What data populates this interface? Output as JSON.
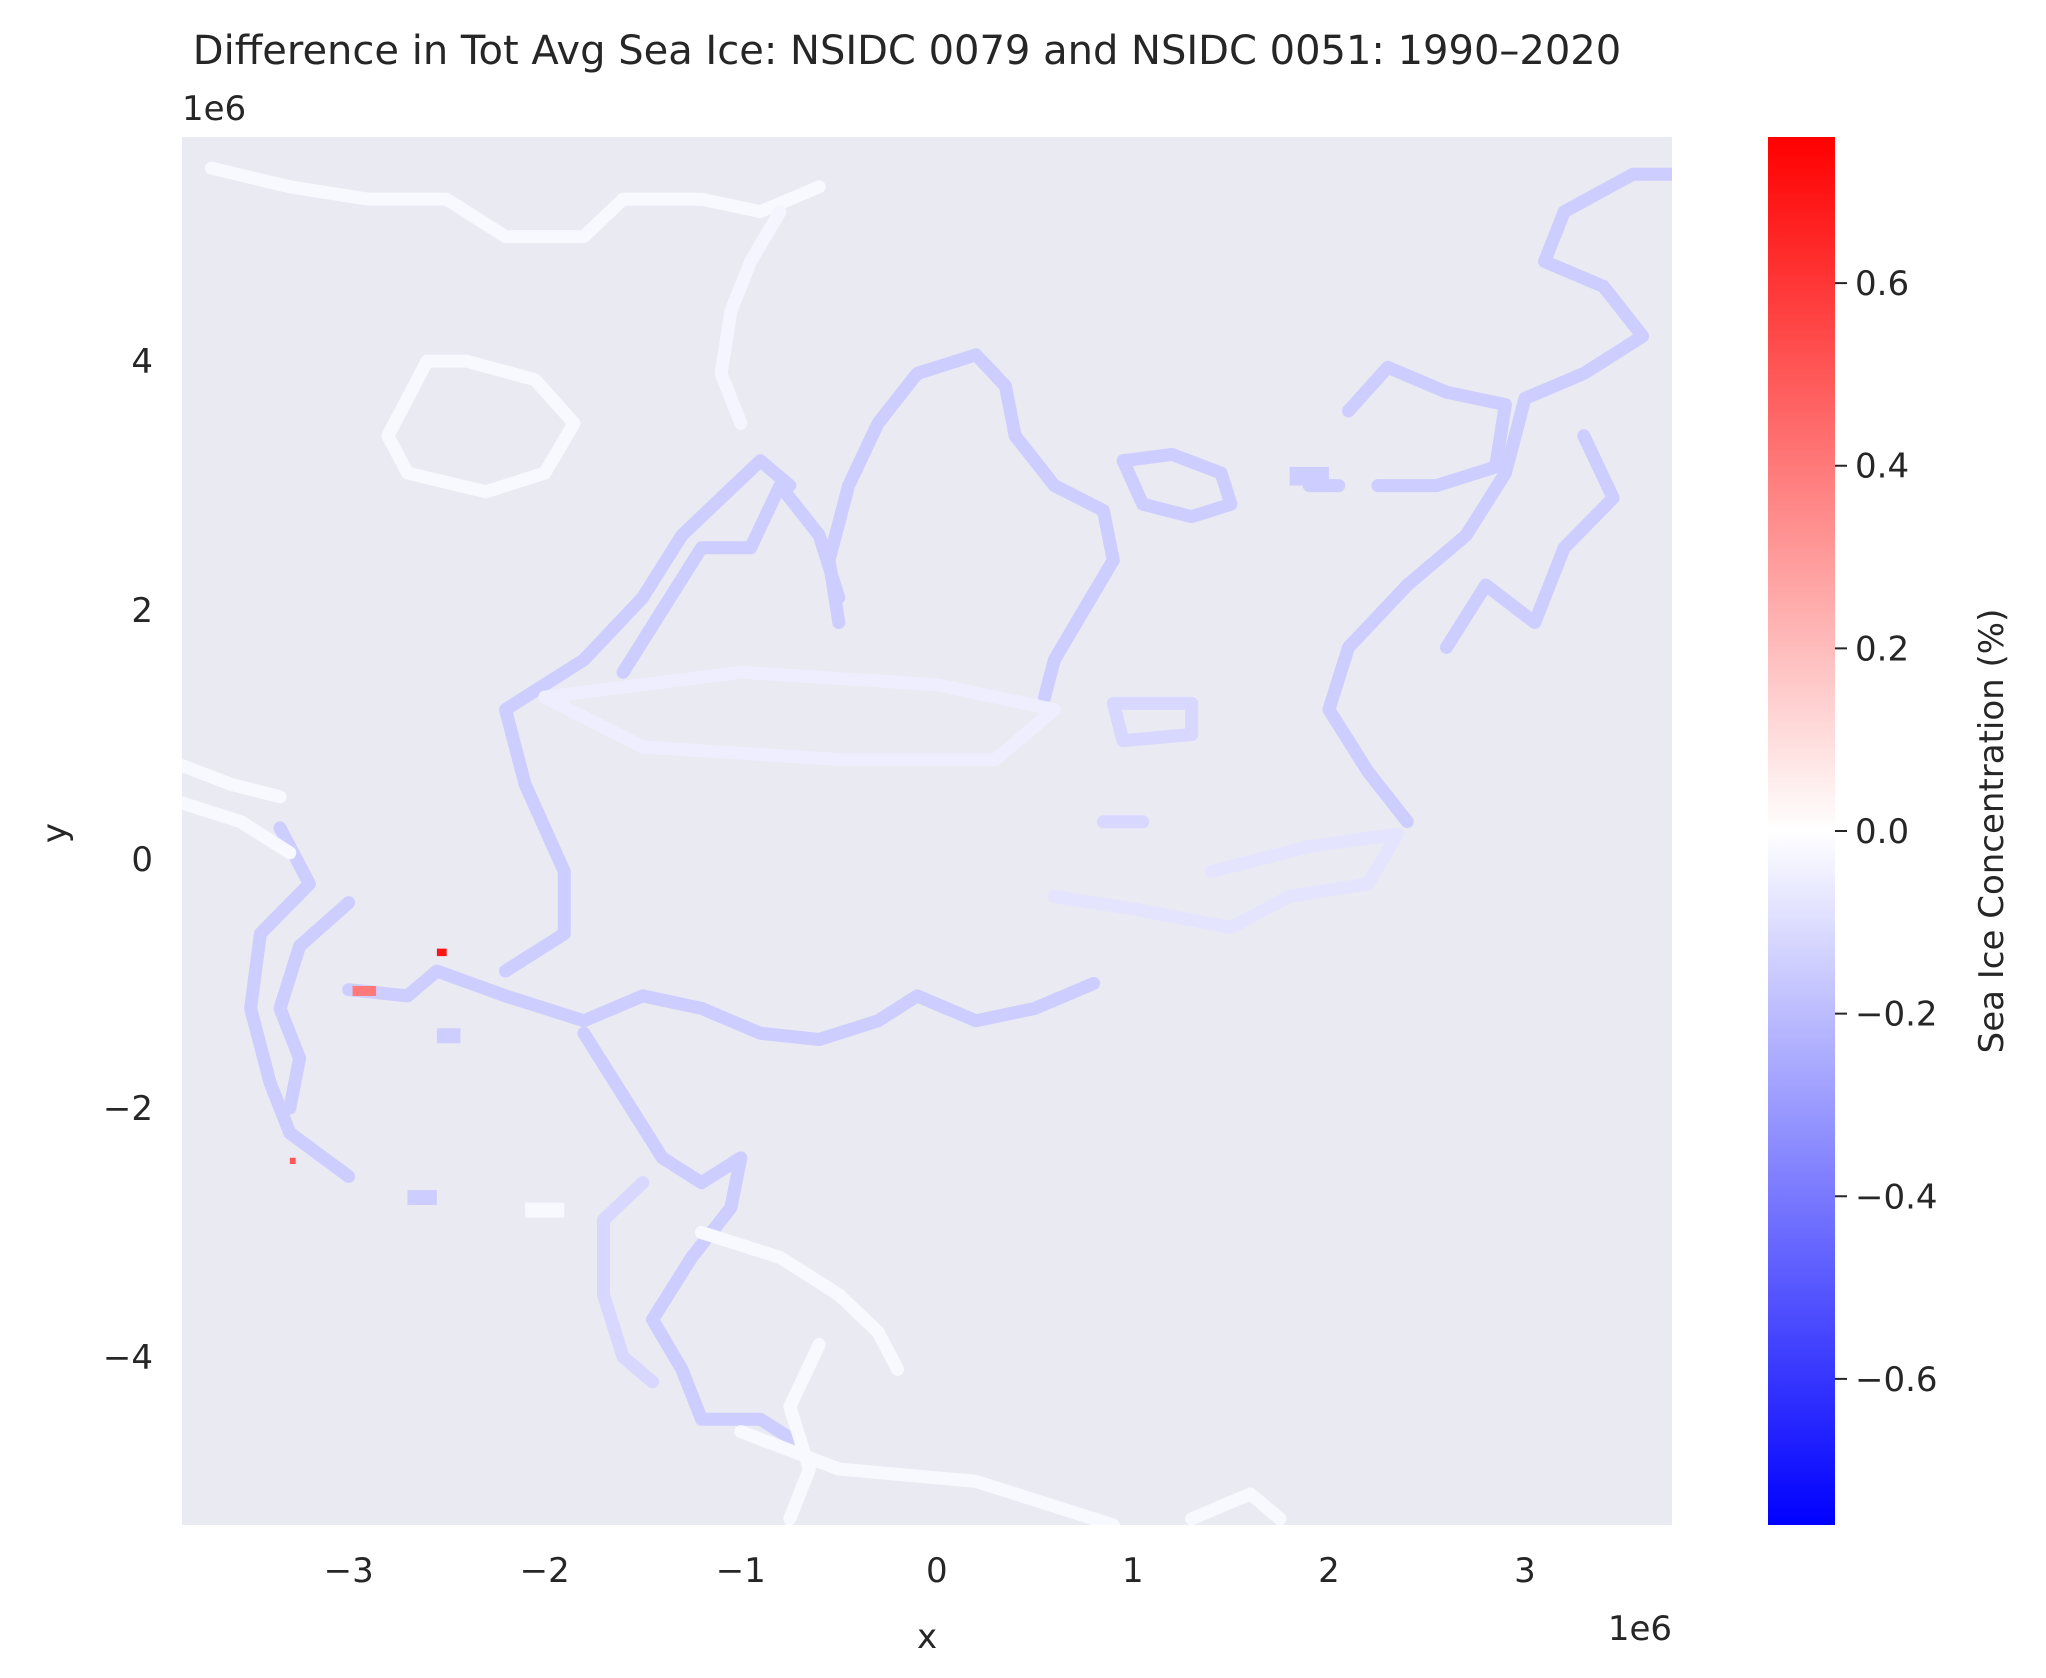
{
  "chart_data": {
    "type": "heatmap",
    "title": "Difference in Tot Avg Sea Ice: NSIDC 0079 and NSIDC 0051: 1990–2020",
    "xlabel": "x",
    "ylabel": "y",
    "x_offset_label": "1e6",
    "y_offset_label": "1e6",
    "xlim": [
      -3.85,
      3.75
    ],
    "ylim": [
      -5.35,
      5.8
    ],
    "x_ticks": [
      -3,
      -2,
      -1,
      0,
      1,
      2,
      3
    ],
    "x_tick_labels": [
      "−3",
      "−2",
      "−1",
      "0",
      "1",
      "2",
      "3"
    ],
    "y_ticks": [
      -4,
      -2,
      0,
      2,
      4
    ],
    "y_tick_labels": [
      "−4",
      "−2",
      "0",
      "2",
      "4"
    ],
    "grid": false,
    "background_color": "#eaeaf2",
    "colorbar": {
      "label": "Sea Ice Concentration (%)",
      "range": [
        -0.76,
        0.76
      ],
      "ticks": [
        0.6,
        0.4,
        0.2,
        0.0,
        -0.2,
        -0.4,
        -0.6
      ],
      "tick_labels": [
        "0.6",
        "0.4",
        "0.2",
        "0.0",
        "−0.2",
        "−0.4",
        "−0.6"
      ],
      "colormap": "bwr",
      "color_low": "#0000ff",
      "color_mid": "#ffffff",
      "color_high": "#ff0000"
    },
    "features": [
      {
        "name": "greenland-coast",
        "value": -0.15,
        "points": [
          [
            -0.5,
            1.9
          ],
          [
            -0.55,
            2.4
          ],
          [
            -0.45,
            3.0
          ],
          [
            -0.3,
            3.5
          ],
          [
            -0.1,
            3.9
          ],
          [
            0.2,
            4.05
          ],
          [
            0.35,
            3.8
          ],
          [
            0.4,
            3.4
          ],
          [
            0.6,
            3.0
          ],
          [
            0.85,
            2.8
          ],
          [
            0.9,
            2.4
          ],
          [
            0.75,
            2.0
          ],
          [
            0.6,
            1.6
          ],
          [
            0.55,
            1.3
          ]
        ]
      },
      {
        "name": "svalbard",
        "value": -0.15,
        "points": [
          [
            0.95,
            3.2
          ],
          [
            1.2,
            3.25
          ],
          [
            1.45,
            3.1
          ],
          [
            1.5,
            2.85
          ],
          [
            1.3,
            2.75
          ],
          [
            1.05,
            2.85
          ],
          [
            0.95,
            3.2
          ]
        ]
      },
      {
        "name": "franz-josef",
        "value": -0.15,
        "points": [
          [
            1.9,
            3.0
          ],
          [
            2.05,
            3.0
          ]
        ]
      },
      {
        "name": "novaya-zemlya",
        "value": -0.15,
        "points": [
          [
            2.1,
            3.6
          ],
          [
            2.3,
            3.95
          ],
          [
            2.6,
            3.75
          ],
          [
            2.9,
            3.65
          ],
          [
            2.85,
            3.15
          ],
          [
            2.55,
            3.0
          ],
          [
            2.25,
            3.0
          ]
        ]
      },
      {
        "name": "siberia-east-coast",
        "value": -0.15,
        "points": [
          [
            3.8,
            5.5
          ],
          [
            3.55,
            5.5
          ],
          [
            3.2,
            5.2
          ],
          [
            3.1,
            4.8
          ],
          [
            3.4,
            4.6
          ],
          [
            3.6,
            4.2
          ],
          [
            3.3,
            3.9
          ],
          [
            3.0,
            3.7
          ],
          [
            2.9,
            3.1
          ],
          [
            2.7,
            2.6
          ],
          [
            2.4,
            2.2
          ],
          [
            2.1,
            1.7
          ],
          [
            2.0,
            1.2
          ],
          [
            2.2,
            0.7
          ],
          [
            2.4,
            0.3
          ]
        ]
      },
      {
        "name": "siberia-inner-coast",
        "value": -0.15,
        "points": [
          [
            3.3,
            3.4
          ],
          [
            3.45,
            2.9
          ],
          [
            3.2,
            2.5
          ],
          [
            3.05,
            1.9
          ],
          [
            2.8,
            2.2
          ],
          [
            2.6,
            1.7
          ]
        ]
      },
      {
        "name": "new-siberian-islands",
        "value": -0.12,
        "points": [
          [
            0.9,
            1.25
          ],
          [
            1.3,
            1.25
          ],
          [
            1.3,
            1.0
          ],
          [
            0.95,
            0.95
          ],
          [
            0.9,
            1.25
          ]
        ]
      },
      {
        "name": "wrangel",
        "value": -0.12,
        "points": [
          [
            0.85,
            0.3
          ],
          [
            1.05,
            0.3
          ]
        ]
      },
      {
        "name": "alaska-coast",
        "value": -0.15,
        "points": [
          [
            -3.35,
            0.25
          ],
          [
            -3.2,
            -0.2
          ],
          [
            -3.45,
            -0.6
          ],
          [
            -3.5,
            -1.2
          ],
          [
            -3.4,
            -1.8
          ],
          [
            -3.3,
            -2.2
          ],
          [
            -3.0,
            -2.55
          ]
        ]
      },
      {
        "name": "bering-coast",
        "value": -0.15,
        "points": [
          [
            -3.0,
            -0.35
          ],
          [
            -3.25,
            -0.7
          ],
          [
            -3.35,
            -1.2
          ],
          [
            -3.25,
            -1.6
          ],
          [
            -3.3,
            -2.0
          ]
        ]
      },
      {
        "name": "canada-arctic-coast",
        "value": -0.15,
        "points": [
          [
            -3.0,
            -1.05
          ],
          [
            -2.7,
            -1.1
          ],
          [
            -2.55,
            -0.9
          ],
          [
            -2.2,
            -1.1
          ],
          [
            -1.8,
            -1.3
          ],
          [
            -1.5,
            -1.1
          ],
          [
            -1.2,
            -1.2
          ],
          [
            -0.9,
            -1.4
          ],
          [
            -0.6,
            -1.45
          ],
          [
            -0.3,
            -1.3
          ],
          [
            -0.1,
            -1.1
          ],
          [
            0.2,
            -1.3
          ],
          [
            0.5,
            -1.2
          ],
          [
            0.8,
            -1.0
          ]
        ]
      },
      {
        "name": "canadian-archipelago",
        "value": -0.15,
        "points": [
          [
            -2.2,
            -0.9
          ],
          [
            -1.9,
            -0.6
          ],
          [
            -1.9,
            -0.1
          ],
          [
            -2.1,
            0.6
          ],
          [
            -2.2,
            1.2
          ],
          [
            -1.8,
            1.6
          ],
          [
            -1.5,
            2.1
          ],
          [
            -1.3,
            2.6
          ],
          [
            -1.1,
            2.9
          ],
          [
            -0.9,
            3.2
          ],
          [
            -0.75,
            3.0
          ]
        ]
      },
      {
        "name": "ellesmere-island",
        "value": -0.15,
        "points": [
          [
            -1.6,
            1.5
          ],
          [
            -1.4,
            2.0
          ],
          [
            -1.2,
            2.5
          ],
          [
            -0.95,
            2.5
          ],
          [
            -0.8,
            3.0
          ],
          [
            -0.6,
            2.6
          ],
          [
            -0.5,
            2.1
          ]
        ]
      },
      {
        "name": "hudson-bay",
        "value": -0.15,
        "points": [
          [
            -1.8,
            -1.4
          ],
          [
            -1.6,
            -1.9
          ],
          [
            -1.4,
            -2.4
          ],
          [
            -1.2,
            -2.6
          ],
          [
            -1.0,
            -2.4
          ],
          [
            -1.05,
            -2.8
          ],
          [
            -1.25,
            -3.2
          ],
          [
            -1.45,
            -3.7
          ],
          [
            -1.3,
            -4.1
          ],
          [
            -1.2,
            -4.5
          ],
          [
            -0.9,
            -4.5
          ],
          [
            -0.7,
            -4.7
          ]
        ]
      },
      {
        "name": "labrador-coast",
        "value": -0.12,
        "points": [
          [
            -1.5,
            -2.6
          ],
          [
            -1.7,
            -2.9
          ],
          [
            -1.7,
            -3.5
          ],
          [
            -1.6,
            -4.0
          ],
          [
            -1.45,
            -4.2
          ]
        ]
      },
      {
        "name": "central-arctic-ocean",
        "value": -0.05,
        "points": [
          [
            -2.0,
            1.3
          ],
          [
            -1.0,
            1.5
          ],
          [
            0.0,
            1.4
          ],
          [
            0.6,
            1.2
          ],
          [
            0.3,
            0.8
          ],
          [
            -0.5,
            0.8
          ],
          [
            -1.5,
            0.9
          ],
          [
            -2.0,
            1.3
          ]
        ]
      },
      {
        "name": "barents-sea-edge",
        "value": -0.08,
        "points": [
          [
            0.6,
            -0.3
          ],
          [
            1.0,
            -0.4
          ],
          [
            1.5,
            -0.55
          ],
          [
            1.8,
            -0.3
          ],
          [
            2.2,
            -0.2
          ],
          [
            2.35,
            0.2
          ],
          [
            1.9,
            0.1
          ],
          [
            1.4,
            -0.1
          ]
        ]
      },
      {
        "name": "north-atlantic-edge-top",
        "value": -0.02,
        "points": [
          [
            -3.7,
            5.55
          ],
          [
            -3.3,
            5.4
          ],
          [
            -2.9,
            5.3
          ],
          [
            -2.5,
            5.3
          ],
          [
            -2.2,
            5.0
          ],
          [
            -1.8,
            5.0
          ],
          [
            -1.6,
            5.3
          ],
          [
            -1.2,
            5.3
          ],
          [
            -0.9,
            5.2
          ],
          [
            -0.6,
            5.4
          ]
        ]
      },
      {
        "name": "east-greenland-current",
        "value": -0.03,
        "points": [
          [
            -0.8,
            5.2
          ],
          [
            -0.95,
            4.8
          ],
          [
            -1.05,
            4.4
          ],
          [
            -1.1,
            3.9
          ],
          [
            -1.0,
            3.5
          ]
        ]
      },
      {
        "name": "iceland-ring",
        "value": -0.02,
        "points": [
          [
            -2.6,
            4.0
          ],
          [
            -2.4,
            4.0
          ],
          [
            -2.05,
            3.85
          ],
          [
            -1.85,
            3.5
          ],
          [
            -2.0,
            3.1
          ],
          [
            -2.3,
            2.95
          ],
          [
            -2.7,
            3.1
          ],
          [
            -2.8,
            3.4
          ],
          [
            -2.6,
            4.0
          ]
        ]
      },
      {
        "name": "pacific-ice-edge",
        "value": -0.02,
        "points": [
          [
            -3.85,
            0.45
          ],
          [
            -3.55,
            0.3
          ],
          [
            -3.3,
            0.05
          ]
        ]
      },
      {
        "name": "pacific-ice-edge-upper",
        "value": -0.02,
        "points": [
          [
            -3.85,
            0.75
          ],
          [
            -3.6,
            0.6
          ],
          [
            -3.35,
            0.5
          ]
        ]
      },
      {
        "name": "okhotsk-edge",
        "value": -0.02,
        "points": [
          [
            -1.2,
            -3.0
          ],
          [
            -0.8,
            -3.2
          ],
          [
            -0.5,
            -3.5
          ],
          [
            -0.3,
            -3.8
          ],
          [
            -0.2,
            -4.1
          ]
        ]
      },
      {
        "name": "okhotsk-bottom",
        "value": -0.02,
        "points": [
          [
            -1.0,
            -4.6
          ],
          [
            -0.5,
            -4.9
          ],
          [
            0.2,
            -5.0
          ],
          [
            0.6,
            -5.2
          ],
          [
            0.9,
            -5.35
          ]
        ]
      },
      {
        "name": "bottom-right-edge",
        "value": -0.02,
        "points": [
          [
            1.3,
            -5.3
          ],
          [
            1.6,
            -5.1
          ],
          [
            1.75,
            -5.3
          ]
        ]
      },
      {
        "name": "okhotsk-inner",
        "value": -0.02,
        "points": [
          [
            -0.6,
            -3.9
          ],
          [
            -0.75,
            -4.4
          ],
          [
            -0.65,
            -4.9
          ],
          [
            -0.75,
            -5.3
          ]
        ]
      }
    ],
    "blocks": [
      {
        "name": "bering-block-1",
        "value": -0.15,
        "x": -2.55,
        "y": -1.48,
        "w": 0.12,
        "h": 0.12
      },
      {
        "name": "bering-block-2",
        "value": -0.15,
        "x": -2.7,
        "y": -2.78,
        "w": 0.15,
        "h": 0.12
      },
      {
        "name": "kara-block",
        "value": -0.15,
        "x": 1.8,
        "y": 3.0,
        "w": 0.2,
        "h": 0.15
      },
      {
        "name": "labrador-block",
        "value": -0.02,
        "x": -2.1,
        "y": -2.88,
        "w": 0.2,
        "h": 0.12
      }
    ],
    "positive_spots": [
      {
        "name": "red-spot-1",
        "value": 0.4,
        "x": -2.98,
        "y": -1.1,
        "w": 0.12,
        "h": 0.08
      },
      {
        "name": "red-spot-2",
        "value": 0.7,
        "x": -2.55,
        "y": -0.78,
        "w": 0.05,
        "h": 0.06
      },
      {
        "name": "red-spot-3",
        "value": 0.5,
        "x": -3.3,
        "y": -2.45,
        "w": 0.03,
        "h": 0.05
      }
    ]
  }
}
